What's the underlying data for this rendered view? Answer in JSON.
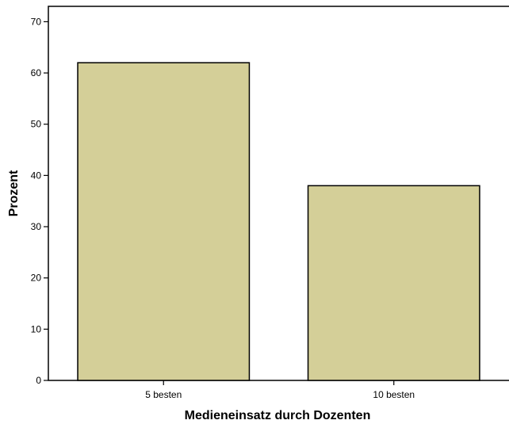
{
  "chart_data": {
    "type": "bar",
    "categories": [
      "5 besten",
      "10 besten"
    ],
    "values": [
      62,
      38
    ],
    "title": "",
    "xlabel": "Medieneinsatz durch Dozenten",
    "ylabel": "Prozent",
    "ylim": [
      0,
      73
    ],
    "yticks": [
      0,
      10,
      20,
      30,
      40,
      50,
      60,
      70
    ],
    "bar_color": "#d4cf98",
    "grid": false
  }
}
